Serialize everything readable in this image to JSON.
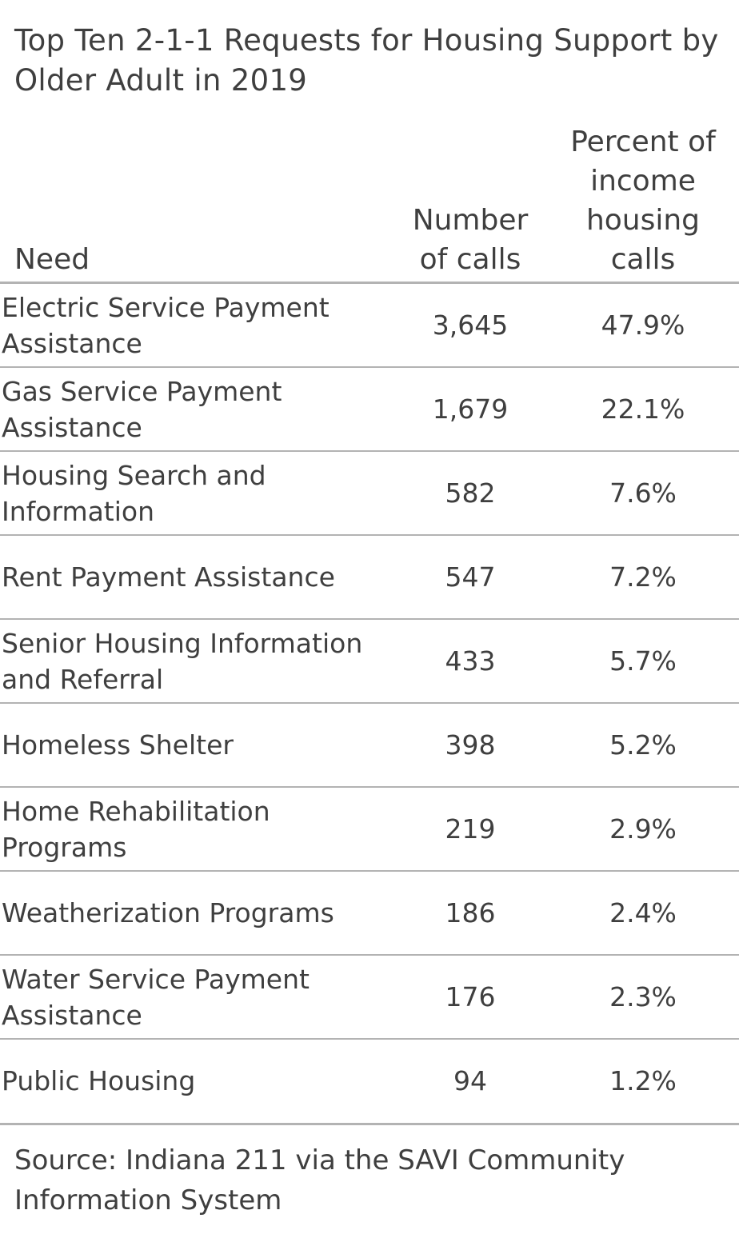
{
  "chart_data": {
    "type": "table",
    "title": "Top Ten 2-1-1 Requests for Housing Support by Older Adult in 2019",
    "columns": [
      "Need",
      "Number of calls",
      "Percent of income housing calls"
    ],
    "rows": [
      {
        "need": "Electric Service Payment Assistance",
        "calls": "3,645",
        "percent": "47.9%"
      },
      {
        "need": "Gas Service Payment Assistance",
        "calls": "1,679",
        "percent": "22.1%"
      },
      {
        "need": "Housing Search and Information",
        "calls": "582",
        "percent": "7.6%"
      },
      {
        "need": "Rent Payment Assistance",
        "calls": "547",
        "percent": "7.2%"
      },
      {
        "need": "Senior Housing Information and Referral",
        "calls": "433",
        "percent": "5.7%"
      },
      {
        "need": "Homeless Shelter",
        "calls": "398",
        "percent": "5.2%"
      },
      {
        "need": "Home Rehabilitation Programs",
        "calls": "219",
        "percent": "2.9%"
      },
      {
        "need": "Weatherization Programs",
        "calls": "186",
        "percent": "2.4%"
      },
      {
        "need": "Water Service Payment Assistance",
        "calls": "176",
        "percent": "2.3%"
      },
      {
        "need": "Public Housing",
        "calls": "94",
        "percent": "1.2%"
      }
    ],
    "source": "Source: Indiana 211 via the SAVI Community Information System"
  },
  "colors": {
    "text": "#3f3f3f",
    "rule": "#b3b3b3"
  }
}
